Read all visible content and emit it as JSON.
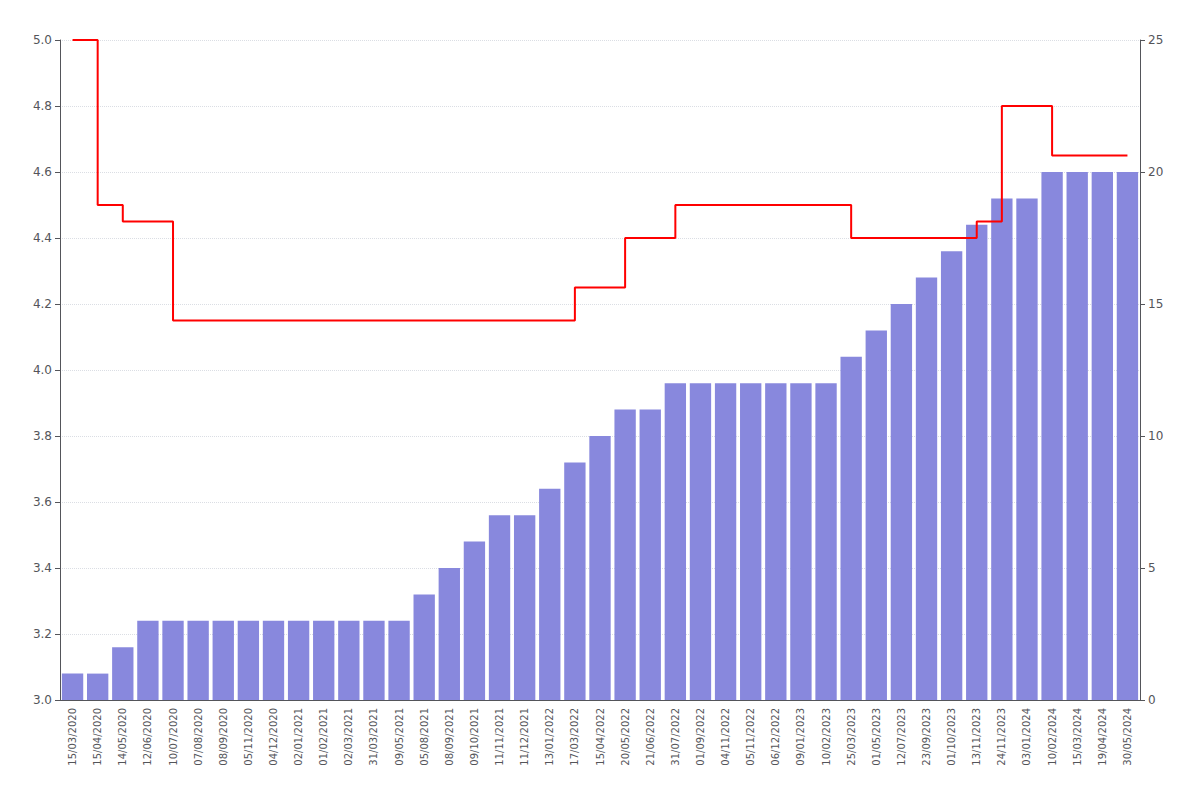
{
  "chart_data": {
    "type": "bar",
    "categories": [
      "15/03/2020",
      "15/04/2020",
      "14/05/2020",
      "12/06/2020",
      "10/07/2020",
      "07/08/2020",
      "08/09/2020",
      "05/11/2020",
      "04/12/2020",
      "02/01/2021",
      "01/02/2021",
      "02/03/2021",
      "31/03/2021",
      "09/05/2021",
      "05/08/2021",
      "08/09/2021",
      "09/10/2021",
      "11/11/2021",
      "11/12/2021",
      "13/01/2022",
      "17/03/2022",
      "15/04/2022",
      "20/05/2022",
      "21/06/2022",
      "31/07/2022",
      "01/09/2022",
      "04/11/2022",
      "05/11/2022",
      "06/12/2022",
      "09/01/2023",
      "10/02/2023",
      "25/03/2023",
      "01/05/2023",
      "12/07/2023",
      "23/09/2023",
      "01/10/2023",
      "13/11/2023",
      "24/11/2023",
      "03/01/2024",
      "10/02/2024",
      "15/03/2024",
      "19/04/2024",
      "30/05/2024"
    ],
    "series": [
      {
        "type": "bar",
        "axis": "y2",
        "color": "#8888dd",
        "values": [
          1,
          1,
          2,
          3,
          3,
          3,
          3,
          3,
          3,
          3,
          3,
          3,
          3,
          3,
          4,
          5,
          6,
          7,
          7,
          8,
          9,
          10,
          11,
          11,
          12,
          12,
          12,
          12,
          12,
          12,
          12,
          13,
          14,
          15,
          16,
          17,
          18,
          19,
          19,
          20,
          20,
          20,
          20
        ]
      },
      {
        "type": "step",
        "color": "#ff0000",
        "values": [
          5.0,
          4.5,
          4.45,
          4.45,
          4.15,
          4.15,
          4.15,
          4.15,
          4.15,
          4.15,
          4.15,
          4.15,
          4.15,
          4.15,
          4.15,
          4.15,
          4.15,
          4.15,
          4.15,
          4.15,
          4.25,
          4.25,
          4.4,
          4.4,
          4.5,
          4.5,
          4.5,
          4.5,
          4.5,
          4.5,
          4.5,
          4.4,
          4.4,
          4.4,
          4.4,
          4.4,
          4.45,
          4.8,
          4.8,
          4.65,
          4.65,
          4.65,
          4.65
        ]
      }
    ],
    "ylim": [
      3.0,
      5.0
    ],
    "yticks": [
      {
        "value": 3.0,
        "label": "3.0"
      },
      3.2,
      3.4,
      3.6,
      3.8,
      {
        "value": 4.0,
        "label": "4.0"
      },
      4.2,
      4.4,
      4.6,
      4.8,
      {
        "value": 5.0,
        "label": "5.0"
      }
    ],
    "y2lim": [
      0,
      25
    ],
    "y2ticks": [
      0,
      5,
      10,
      15,
      20,
      25
    ],
    "grid": true
  }
}
